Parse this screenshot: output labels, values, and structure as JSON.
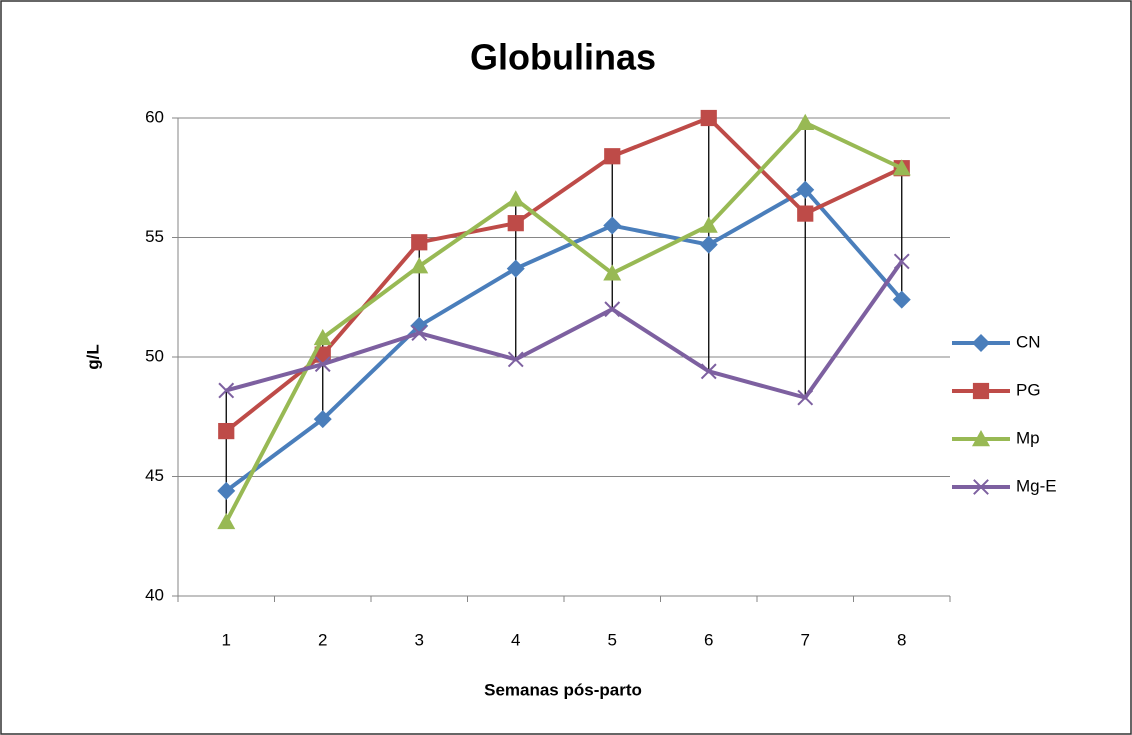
{
  "chart_data": {
    "type": "line",
    "title": "Globulinas",
    "x_label": "Semanas pós-parto",
    "y_label": "g/L",
    "categories": [
      "1",
      "2",
      "3",
      "4",
      "5",
      "6",
      "7",
      "8"
    ],
    "series": [
      {
        "name": "CN",
        "color": "#4a7ebb",
        "marker": "diamond",
        "values": [
          44.4,
          47.4,
          51.3,
          53.7,
          55.5,
          54.7,
          57.0,
          52.4
        ]
      },
      {
        "name": "PG",
        "color": "#be4b48",
        "marker": "square",
        "values": [
          46.9,
          50.1,
          54.8,
          55.6,
          58.4,
          60.0,
          56.0,
          57.9
        ]
      },
      {
        "name": "Mp",
        "color": "#98b954",
        "marker": "triangle",
        "values": [
          43.1,
          50.8,
          53.8,
          56.6,
          53.5,
          55.5,
          59.8,
          57.9
        ]
      },
      {
        "name": "Mg-E",
        "color": "#7d60a0",
        "marker": "x",
        "values": [
          48.6,
          49.7,
          51.0,
          49.9,
          52.0,
          49.4,
          48.3,
          54.0
        ]
      }
    ],
    "ylim": [
      40,
      60
    ],
    "yticks": [
      40,
      45,
      50,
      55,
      60
    ],
    "grid": true,
    "high_low_lines": true,
    "legend": "right"
  }
}
